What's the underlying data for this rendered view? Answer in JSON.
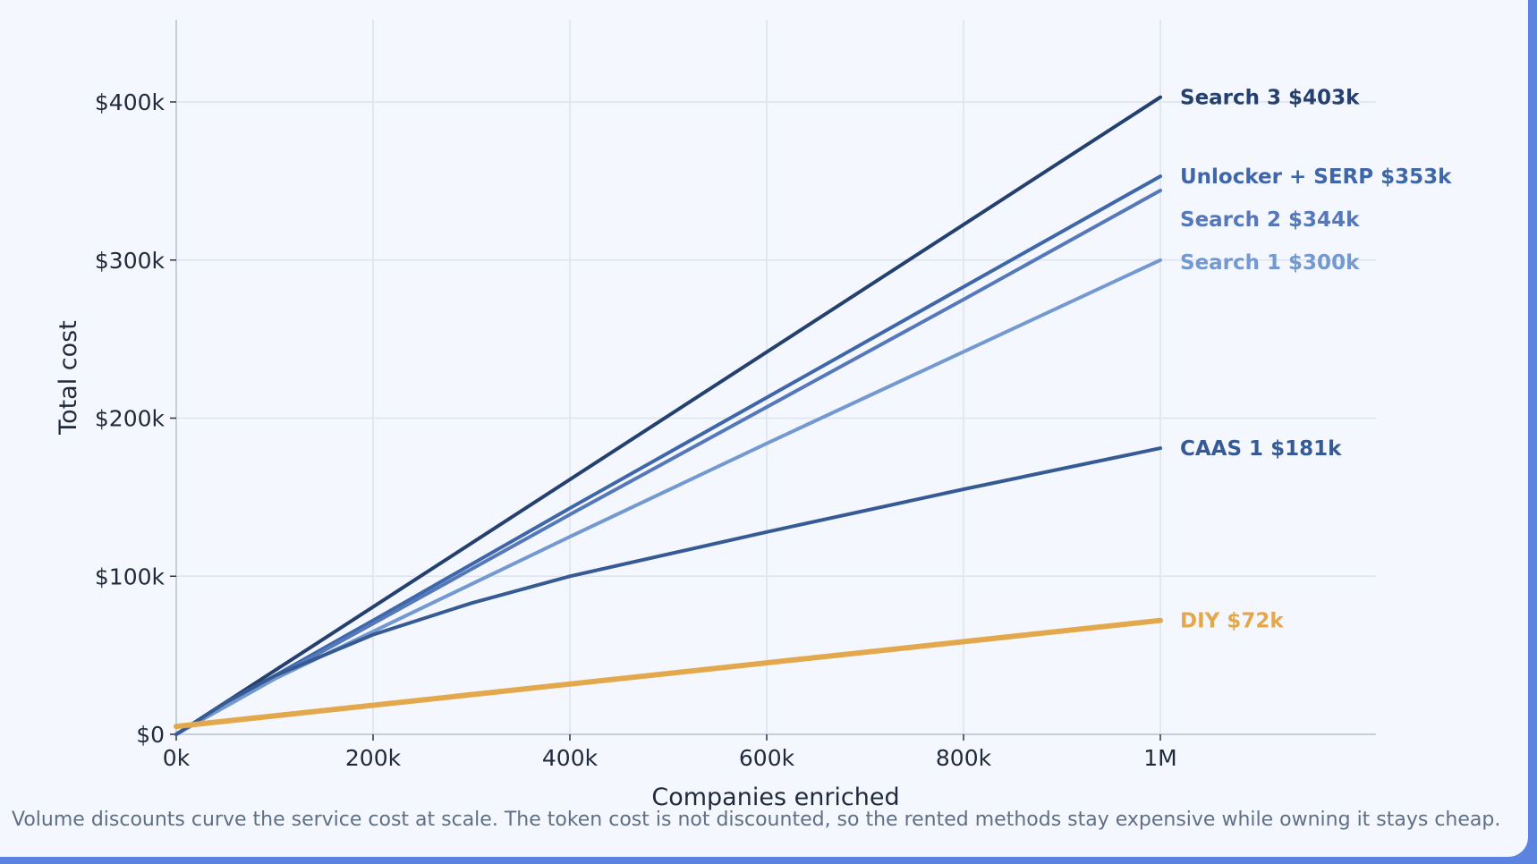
{
  "chart_data": {
    "type": "line",
    "xlabel": "Companies enriched",
    "ylabel": "Total cost",
    "xlim": [
      0,
      1220000
    ],
    "ylim": [
      0,
      450000
    ],
    "grid": true,
    "x_ticks": [
      {
        "value": 0,
        "label": "0k"
      },
      {
        "value": 200000,
        "label": "200k"
      },
      {
        "value": 400000,
        "label": "400k"
      },
      {
        "value": 600000,
        "label": "600k"
      },
      {
        "value": 800000,
        "label": "800k"
      },
      {
        "value": 1000000,
        "label": "1M"
      }
    ],
    "y_ticks": [
      {
        "value": 0,
        "label": "$0"
      },
      {
        "value": 100000,
        "label": "$100k"
      },
      {
        "value": 200000,
        "label": "$200k"
      },
      {
        "value": 300000,
        "label": "$300k"
      },
      {
        "value": 400000,
        "label": "$400k"
      }
    ],
    "series": [
      {
        "name": "Search 3",
        "end_label": "$403k",
        "color": "#24406e",
        "width": 4,
        "x": [
          0,
          1000000
        ],
        "y": [
          0,
          403000
        ]
      },
      {
        "name": "Unlocker + SERP",
        "end_label": "$353k",
        "color": "#3f66a8",
        "width": 4,
        "x": [
          0,
          100000,
          200000,
          400000,
          600000,
          800000,
          1000000
        ],
        "y": [
          0,
          37000,
          72000,
          143000,
          213000,
          283000,
          353000
        ]
      },
      {
        "name": "Search 2",
        "end_label": "$344k",
        "color": "#5478ba",
        "width": 4,
        "x": [
          0,
          100000,
          200000,
          400000,
          600000,
          800000,
          1000000
        ],
        "y": [
          0,
          36000,
          70000,
          139000,
          207000,
          275000,
          344000
        ]
      },
      {
        "name": "Search 1",
        "end_label": "$300k",
        "color": "#7399d0",
        "width": 4,
        "x": [
          0,
          100000,
          200000,
          400000,
          600000,
          800000,
          1000000
        ],
        "y": [
          0,
          35000,
          65000,
          125000,
          184000,
          242000,
          300000
        ]
      },
      {
        "name": "CAAS 1",
        "end_label": "$181k",
        "color": "#355a94",
        "width": 4,
        "x": [
          0,
          50000,
          100000,
          200000,
          300000,
          400000,
          600000,
          800000,
          1000000
        ],
        "y": [
          0,
          20000,
          37000,
          63000,
          83000,
          100000,
          128000,
          155000,
          181000
        ]
      },
      {
        "name": "DIY",
        "end_label": "$72k",
        "color": "#e4a84c",
        "width": 6,
        "x": [
          0,
          1000000
        ],
        "y": [
          5000,
          72000
        ]
      }
    ]
  },
  "caption": "Volume discounts curve the service cost at scale. The token cost is not discounted, so the rented methods stay expensive while owning it stays cheap."
}
